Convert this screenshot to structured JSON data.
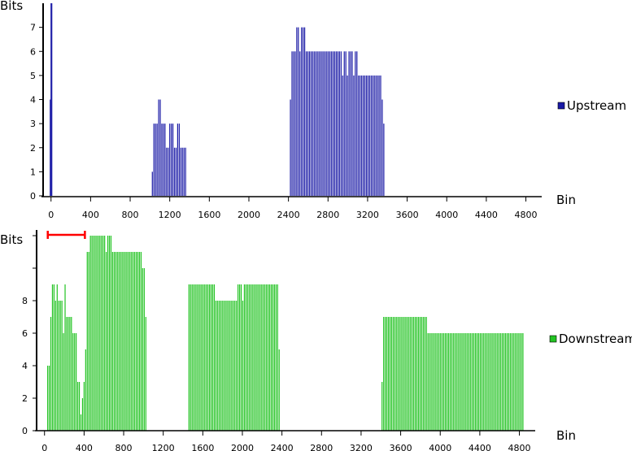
{
  "chart_data": [
    {
      "type": "bar",
      "title": "",
      "ylabel": "Bits",
      "xlabel": "Bin",
      "xlim": [
        -80,
        4960
      ],
      "ylim": [
        0,
        8
      ],
      "x_ticks": [
        0,
        400,
        800,
        1200,
        1600,
        2000,
        2400,
        2800,
        3200,
        3600,
        4000,
        4400,
        4800
      ],
      "y_ticks": [
        0,
        1,
        2,
        3,
        4,
        5,
        6,
        7
      ],
      "legend": {
        "label": "Upstream",
        "color": "#1a1aa6",
        "position": "right"
      },
      "bar_width_bins": 6,
      "bars": [
        {
          "x": -8,
          "y": 4
        },
        {
          "x": 0,
          "y": 8
        },
        {
          "x": 8,
          "y": 8
        },
        {
          "x": 1024,
          "y": 1
        },
        {
          "x": 1040,
          "y": 3
        },
        {
          "x": 1056,
          "y": 3
        },
        {
          "x": 1072,
          "y": 3
        },
        {
          "x": 1088,
          "y": 4
        },
        {
          "x": 1104,
          "y": 4
        },
        {
          "x": 1120,
          "y": 3
        },
        {
          "x": 1136,
          "y": 3
        },
        {
          "x": 1152,
          "y": 3
        },
        {
          "x": 1168,
          "y": 2
        },
        {
          "x": 1184,
          "y": 2
        },
        {
          "x": 1200,
          "y": 3
        },
        {
          "x": 1216,
          "y": 3
        },
        {
          "x": 1232,
          "y": 3
        },
        {
          "x": 1248,
          "y": 2
        },
        {
          "x": 1264,
          "y": 2
        },
        {
          "x": 1280,
          "y": 3
        },
        {
          "x": 1296,
          "y": 3
        },
        {
          "x": 1312,
          "y": 2
        },
        {
          "x": 1328,
          "y": 2
        },
        {
          "x": 1344,
          "y": 2
        },
        {
          "x": 1360,
          "y": 2
        },
        {
          "x": 2420,
          "y": 4
        },
        {
          "x": 2436,
          "y": 6
        },
        {
          "x": 2452,
          "y": 6
        },
        {
          "x": 2468,
          "y": 6
        },
        {
          "x": 2484,
          "y": 7
        },
        {
          "x": 2500,
          "y": 7
        },
        {
          "x": 2516,
          "y": 6
        },
        {
          "x": 2532,
          "y": 7
        },
        {
          "x": 2548,
          "y": 7
        },
        {
          "x": 2564,
          "y": 7
        },
        {
          "x": 2580,
          "y": 6
        },
        {
          "x": 2596,
          "y": 6
        },
        {
          "x": 2612,
          "y": 6
        },
        {
          "x": 2628,
          "y": 6
        },
        {
          "x": 2644,
          "y": 6
        },
        {
          "x": 2660,
          "y": 6
        },
        {
          "x": 2676,
          "y": 6
        },
        {
          "x": 2692,
          "y": 6
        },
        {
          "x": 2708,
          "y": 6
        },
        {
          "x": 2724,
          "y": 6
        },
        {
          "x": 2740,
          "y": 6
        },
        {
          "x": 2756,
          "y": 6
        },
        {
          "x": 2772,
          "y": 6
        },
        {
          "x": 2788,
          "y": 6
        },
        {
          "x": 2804,
          "y": 6
        },
        {
          "x": 2820,
          "y": 6
        },
        {
          "x": 2836,
          "y": 6
        },
        {
          "x": 2852,
          "y": 6
        },
        {
          "x": 2868,
          "y": 6
        },
        {
          "x": 2884,
          "y": 6
        },
        {
          "x": 2900,
          "y": 6
        },
        {
          "x": 2916,
          "y": 6
        },
        {
          "x": 2932,
          "y": 6
        },
        {
          "x": 2948,
          "y": 5
        },
        {
          "x": 2964,
          "y": 6
        },
        {
          "x": 2980,
          "y": 6
        },
        {
          "x": 2996,
          "y": 5
        },
        {
          "x": 3012,
          "y": 6
        },
        {
          "x": 3028,
          "y": 6
        },
        {
          "x": 3044,
          "y": 6
        },
        {
          "x": 3060,
          "y": 5
        },
        {
          "x": 3076,
          "y": 6
        },
        {
          "x": 3092,
          "y": 6
        },
        {
          "x": 3108,
          "y": 5
        },
        {
          "x": 3124,
          "y": 5
        },
        {
          "x": 3140,
          "y": 5
        },
        {
          "x": 3156,
          "y": 5
        },
        {
          "x": 3172,
          "y": 5
        },
        {
          "x": 3188,
          "y": 5
        },
        {
          "x": 3204,
          "y": 5
        },
        {
          "x": 3220,
          "y": 5
        },
        {
          "x": 3236,
          "y": 5
        },
        {
          "x": 3252,
          "y": 5
        },
        {
          "x": 3268,
          "y": 5
        },
        {
          "x": 3284,
          "y": 5
        },
        {
          "x": 3300,
          "y": 5
        },
        {
          "x": 3316,
          "y": 5
        },
        {
          "x": 3332,
          "y": 5
        },
        {
          "x": 3348,
          "y": 4
        },
        {
          "x": 3364,
          "y": 3
        }
      ]
    },
    {
      "type": "bar",
      "title": "",
      "ylabel": "Bits",
      "xlabel": "Bin",
      "xlim": [
        -80,
        4960
      ],
      "ylim": [
        0,
        12
      ],
      "x_ticks": [
        0,
        400,
        800,
        1200,
        1600,
        2000,
        2400,
        2800,
        3200,
        3600,
        4000,
        4400,
        4800
      ],
      "y_ticks": [
        0,
        2,
        4,
        6,
        8
      ],
      "legend": {
        "label": "Downstream",
        "color": "#22c322",
        "position": "right"
      },
      "bar_width_bins": 6,
      "bars": [
        {
          "x": 32,
          "y": 4
        },
        {
          "x": 48,
          "y": 4
        },
        {
          "x": 64,
          "y": 7
        },
        {
          "x": 80,
          "y": 9
        },
        {
          "x": 96,
          "y": 9
        },
        {
          "x": 112,
          "y": 8
        },
        {
          "x": 128,
          "y": 9
        },
        {
          "x": 144,
          "y": 8
        },
        {
          "x": 160,
          "y": 8
        },
        {
          "x": 176,
          "y": 8
        },
        {
          "x": 192,
          "y": 6
        },
        {
          "x": 208,
          "y": 9
        },
        {
          "x": 224,
          "y": 7
        },
        {
          "x": 240,
          "y": 7
        },
        {
          "x": 256,
          "y": 7
        },
        {
          "x": 272,
          "y": 7
        },
        {
          "x": 288,
          "y": 6
        },
        {
          "x": 304,
          "y": 6
        },
        {
          "x": 320,
          "y": 6
        },
        {
          "x": 336,
          "y": 3
        },
        {
          "x": 352,
          "y": 3
        },
        {
          "x": 368,
          "y": 1
        },
        {
          "x": 384,
          "y": 2
        },
        {
          "x": 400,
          "y": 3
        },
        {
          "x": 416,
          "y": 5
        },
        {
          "x": 432,
          "y": 11
        },
        {
          "x": 448,
          "y": 11
        },
        {
          "x": 464,
          "y": 12
        },
        {
          "x": 480,
          "y": 12
        },
        {
          "x": 496,
          "y": 12
        },
        {
          "x": 512,
          "y": 12
        },
        {
          "x": 528,
          "y": 12
        },
        {
          "x": 544,
          "y": 12
        },
        {
          "x": 560,
          "y": 12
        },
        {
          "x": 576,
          "y": 12
        },
        {
          "x": 592,
          "y": 12
        },
        {
          "x": 608,
          "y": 12
        },
        {
          "x": 624,
          "y": 11
        },
        {
          "x": 640,
          "y": 12
        },
        {
          "x": 656,
          "y": 12
        },
        {
          "x": 672,
          "y": 12
        },
        {
          "x": 688,
          "y": 11
        },
        {
          "x": 704,
          "y": 11
        },
        {
          "x": 720,
          "y": 11
        },
        {
          "x": 736,
          "y": 11
        },
        {
          "x": 752,
          "y": 11
        },
        {
          "x": 768,
          "y": 11
        },
        {
          "x": 784,
          "y": 11
        },
        {
          "x": 800,
          "y": 11
        },
        {
          "x": 816,
          "y": 11
        },
        {
          "x": 832,
          "y": 11
        },
        {
          "x": 848,
          "y": 11
        },
        {
          "x": 864,
          "y": 11
        },
        {
          "x": 880,
          "y": 11
        },
        {
          "x": 896,
          "y": 11
        },
        {
          "x": 912,
          "y": 11
        },
        {
          "x": 928,
          "y": 11
        },
        {
          "x": 944,
          "y": 11
        },
        {
          "x": 960,
          "y": 11
        },
        {
          "x": 976,
          "y": 11
        },
        {
          "x": 992,
          "y": 10
        },
        {
          "x": 1008,
          "y": 10
        },
        {
          "x": 1024,
          "y": 7
        },
        {
          "x": 1460,
          "y": 9
        },
        {
          "x": 1476,
          "y": 9
        },
        {
          "x": 1492,
          "y": 9
        },
        {
          "x": 1508,
          "y": 9
        },
        {
          "x": 1524,
          "y": 9
        },
        {
          "x": 1540,
          "y": 9
        },
        {
          "x": 1556,
          "y": 9
        },
        {
          "x": 1572,
          "y": 9
        },
        {
          "x": 1588,
          "y": 9
        },
        {
          "x": 1604,
          "y": 9
        },
        {
          "x": 1620,
          "y": 9
        },
        {
          "x": 1636,
          "y": 9
        },
        {
          "x": 1652,
          "y": 9
        },
        {
          "x": 1668,
          "y": 9
        },
        {
          "x": 1684,
          "y": 9
        },
        {
          "x": 1700,
          "y": 9
        },
        {
          "x": 1716,
          "y": 9
        },
        {
          "x": 1732,
          "y": 8
        },
        {
          "x": 1748,
          "y": 8
        },
        {
          "x": 1764,
          "y": 8
        },
        {
          "x": 1780,
          "y": 8
        },
        {
          "x": 1796,
          "y": 8
        },
        {
          "x": 1812,
          "y": 8
        },
        {
          "x": 1828,
          "y": 8
        },
        {
          "x": 1844,
          "y": 8
        },
        {
          "x": 1860,
          "y": 8
        },
        {
          "x": 1876,
          "y": 8
        },
        {
          "x": 1892,
          "y": 8
        },
        {
          "x": 1908,
          "y": 8
        },
        {
          "x": 1924,
          "y": 8
        },
        {
          "x": 1940,
          "y": 8
        },
        {
          "x": 1956,
          "y": 9
        },
        {
          "x": 1972,
          "y": 9
        },
        {
          "x": 1988,
          "y": 9
        },
        {
          "x": 2004,
          "y": 8
        },
        {
          "x": 2020,
          "y": 9
        },
        {
          "x": 2036,
          "y": 9
        },
        {
          "x": 2052,
          "y": 9
        },
        {
          "x": 2068,
          "y": 9
        },
        {
          "x": 2084,
          "y": 9
        },
        {
          "x": 2100,
          "y": 9
        },
        {
          "x": 2116,
          "y": 9
        },
        {
          "x": 2132,
          "y": 9
        },
        {
          "x": 2148,
          "y": 9
        },
        {
          "x": 2164,
          "y": 9
        },
        {
          "x": 2180,
          "y": 9
        },
        {
          "x": 2196,
          "y": 9
        },
        {
          "x": 2212,
          "y": 9
        },
        {
          "x": 2228,
          "y": 9
        },
        {
          "x": 2244,
          "y": 9
        },
        {
          "x": 2260,
          "y": 9
        },
        {
          "x": 2276,
          "y": 9
        },
        {
          "x": 2292,
          "y": 9
        },
        {
          "x": 2308,
          "y": 9
        },
        {
          "x": 2324,
          "y": 9
        },
        {
          "x": 2340,
          "y": 9
        },
        {
          "x": 2356,
          "y": 9
        },
        {
          "x": 2372,
          "y": 5
        },
        {
          "x": 3412,
          "y": 3
        },
        {
          "x": 3428,
          "y": 7
        },
        {
          "x": 3444,
          "y": 7
        },
        {
          "x": 3460,
          "y": 7
        },
        {
          "x": 3476,
          "y": 7
        },
        {
          "x": 3492,
          "y": 7
        },
        {
          "x": 3508,
          "y": 7
        },
        {
          "x": 3524,
          "y": 7
        },
        {
          "x": 3540,
          "y": 7
        },
        {
          "x": 3556,
          "y": 7
        },
        {
          "x": 3572,
          "y": 7
        },
        {
          "x": 3588,
          "y": 7
        },
        {
          "x": 3604,
          "y": 7
        },
        {
          "x": 3620,
          "y": 7
        },
        {
          "x": 3636,
          "y": 7
        },
        {
          "x": 3652,
          "y": 7
        },
        {
          "x": 3668,
          "y": 7
        },
        {
          "x": 3684,
          "y": 7
        },
        {
          "x": 3700,
          "y": 7
        },
        {
          "x": 3716,
          "y": 7
        },
        {
          "x": 3732,
          "y": 7
        },
        {
          "x": 3748,
          "y": 7
        },
        {
          "x": 3764,
          "y": 7
        },
        {
          "x": 3780,
          "y": 7
        },
        {
          "x": 3796,
          "y": 7
        },
        {
          "x": 3812,
          "y": 7
        },
        {
          "x": 3828,
          "y": 7
        },
        {
          "x": 3844,
          "y": 7
        },
        {
          "x": 3860,
          "y": 7
        },
        {
          "x": 3876,
          "y": 6
        },
        {
          "x": 3892,
          "y": 6
        },
        {
          "x": 3908,
          "y": 6
        },
        {
          "x": 3924,
          "y": 6
        },
        {
          "x": 3940,
          "y": 6
        },
        {
          "x": 3956,
          "y": 6
        },
        {
          "x": 3972,
          "y": 6
        },
        {
          "x": 3988,
          "y": 6
        },
        {
          "x": 4004,
          "y": 6
        },
        {
          "x": 4020,
          "y": 6
        },
        {
          "x": 4036,
          "y": 6
        },
        {
          "x": 4052,
          "y": 6
        },
        {
          "x": 4068,
          "y": 6
        },
        {
          "x": 4084,
          "y": 6
        },
        {
          "x": 4100,
          "y": 6
        },
        {
          "x": 4116,
          "y": 6
        },
        {
          "x": 4132,
          "y": 6
        },
        {
          "x": 4148,
          "y": 6
        },
        {
          "x": 4164,
          "y": 6
        },
        {
          "x": 4180,
          "y": 6
        },
        {
          "x": 4196,
          "y": 6
        },
        {
          "x": 4212,
          "y": 6
        },
        {
          "x": 4228,
          "y": 6
        },
        {
          "x": 4244,
          "y": 6
        },
        {
          "x": 4260,
          "y": 6
        },
        {
          "x": 4276,
          "y": 6
        },
        {
          "x": 4292,
          "y": 6
        },
        {
          "x": 4308,
          "y": 6
        },
        {
          "x": 4324,
          "y": 6
        },
        {
          "x": 4340,
          "y": 6
        },
        {
          "x": 4356,
          "y": 6
        },
        {
          "x": 4372,
          "y": 6
        },
        {
          "x": 4388,
          "y": 6
        },
        {
          "x": 4404,
          "y": 6
        },
        {
          "x": 4420,
          "y": 6
        },
        {
          "x": 4436,
          "y": 6
        },
        {
          "x": 4452,
          "y": 6
        },
        {
          "x": 4468,
          "y": 6
        },
        {
          "x": 4484,
          "y": 6
        },
        {
          "x": 4500,
          "y": 6
        },
        {
          "x": 4516,
          "y": 6
        },
        {
          "x": 4532,
          "y": 6
        },
        {
          "x": 4548,
          "y": 6
        },
        {
          "x": 4564,
          "y": 6
        },
        {
          "x": 4580,
          "y": 6
        },
        {
          "x": 4596,
          "y": 6
        },
        {
          "x": 4612,
          "y": 6
        },
        {
          "x": 4628,
          "y": 6
        },
        {
          "x": 4644,
          "y": 6
        },
        {
          "x": 4660,
          "y": 6
        },
        {
          "x": 4676,
          "y": 6
        },
        {
          "x": 4692,
          "y": 6
        },
        {
          "x": 4708,
          "y": 6
        },
        {
          "x": 4724,
          "y": 6
        },
        {
          "x": 4740,
          "y": 6
        },
        {
          "x": 4756,
          "y": 6
        },
        {
          "x": 4772,
          "y": 6
        },
        {
          "x": 4788,
          "y": 6
        },
        {
          "x": 4804,
          "y": 6
        },
        {
          "x": 4820,
          "y": 6
        },
        {
          "x": 4836,
          "y": 6
        }
      ],
      "annotation": {
        "type": "bracket",
        "color": "#ff0000",
        "x_range": [
          0,
          400
        ]
      }
    }
  ]
}
